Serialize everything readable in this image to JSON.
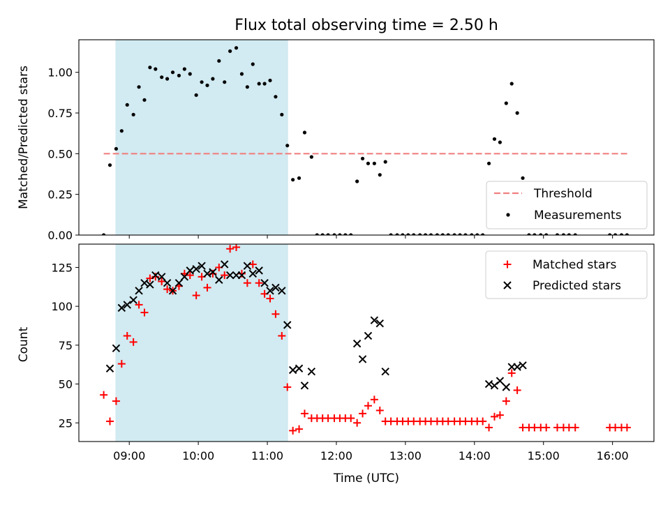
{
  "chart_data": {
    "title": "Flux total observing time = 2.50 h",
    "xlabel": "Time (UTC)",
    "x_ticks": [
      9,
      10,
      11,
      12,
      13,
      14,
      15,
      16
    ],
    "x_tick_labels": [
      "09:00",
      "10:00",
      "11:00",
      "12:00",
      "13:00",
      "14:00",
      "15:00",
      "16:00"
    ],
    "xlim": [
      8.27,
      16.6
    ],
    "highlight_span": [
      8.8,
      11.3
    ],
    "highlight_color": "#add8e6",
    "top_panel": {
      "type": "scatter",
      "ylabel": "Matched/Predicted stars",
      "ylim": [
        0,
        1.2
      ],
      "y_ticks": [
        0,
        0.25,
        0.5,
        0.75,
        1.0
      ],
      "y_tick_labels": [
        "0.00",
        "0.25",
        "0.50",
        "0.75",
        "1.00"
      ],
      "threshold": {
        "name": "Threshold",
        "value": 0.5,
        "x_range": [
          8.63,
          16.25
        ],
        "color": "#f08080"
      },
      "legend": {
        "placement": "lower right",
        "entries": [
          "Threshold",
          "Measurements"
        ]
      },
      "series": [
        {
          "name": "Measurements",
          "color": "#000000",
          "points": [
            [
              8.63,
              0.0
            ],
            [
              8.72,
              0.43
            ],
            [
              8.81,
              0.53
            ],
            [
              8.89,
              0.64
            ],
            [
              8.97,
              0.8
            ],
            [
              9.06,
              0.74
            ],
            [
              9.14,
              0.91
            ],
            [
              9.22,
              0.83
            ],
            [
              9.3,
              1.03
            ],
            [
              9.38,
              1.02
            ],
            [
              9.47,
              0.97
            ],
            [
              9.55,
              0.96
            ],
            [
              9.63,
              1.0
            ],
            [
              9.72,
              0.98
            ],
            [
              9.8,
              1.02
            ],
            [
              9.88,
              0.99
            ],
            [
              9.97,
              0.86
            ],
            [
              10.05,
              0.94
            ],
            [
              10.13,
              0.92
            ],
            [
              10.21,
              0.96
            ],
            [
              10.3,
              1.07
            ],
            [
              10.38,
              0.94
            ],
            [
              10.46,
              1.13
            ],
            [
              10.55,
              1.15
            ],
            [
              10.63,
              0.99
            ],
            [
              10.71,
              0.91
            ],
            [
              10.79,
              1.05
            ],
            [
              10.88,
              0.93
            ],
            [
              10.96,
              0.93
            ],
            [
              11.04,
              0.95
            ],
            [
              11.12,
              0.85
            ],
            [
              11.21,
              0.74
            ],
            [
              11.29,
              0.55
            ],
            [
              11.37,
              0.34
            ],
            [
              11.46,
              0.35
            ],
            [
              11.54,
              0.63
            ],
            [
              11.64,
              0.48
            ],
            [
              11.72,
              0.0
            ],
            [
              11.8,
              0.0
            ],
            [
              11.88,
              0.0
            ],
            [
              11.97,
              0.0
            ],
            [
              12.05,
              0.0
            ],
            [
              12.13,
              0.0
            ],
            [
              12.21,
              0.0
            ],
            [
              12.3,
              0.33
            ],
            [
              12.38,
              0.47
            ],
            [
              12.46,
              0.44
            ],
            [
              12.55,
              0.44
            ],
            [
              12.63,
              0.37
            ],
            [
              12.71,
              0.45
            ],
            [
              12.79,
              0.0
            ],
            [
              12.88,
              0.0
            ],
            [
              12.96,
              0.0
            ],
            [
              13.04,
              0.0
            ],
            [
              13.12,
              0.0
            ],
            [
              13.21,
              0.0
            ],
            [
              13.29,
              0.0
            ],
            [
              13.37,
              0.0
            ],
            [
              13.46,
              0.0
            ],
            [
              13.54,
              0.0
            ],
            [
              13.62,
              0.0
            ],
            [
              13.71,
              0.0
            ],
            [
              13.79,
              0.0
            ],
            [
              13.87,
              0.0
            ],
            [
              13.96,
              0.0
            ],
            [
              14.04,
              0.0
            ],
            [
              14.12,
              0.0
            ],
            [
              14.21,
              0.44
            ],
            [
              14.29,
              0.59
            ],
            [
              14.37,
              0.57
            ],
            [
              14.46,
              0.81
            ],
            [
              14.54,
              0.93
            ],
            [
              14.62,
              0.75
            ],
            [
              14.7,
              0.35
            ],
            [
              14.79,
              0.0
            ],
            [
              14.87,
              0.0
            ],
            [
              14.96,
              0.0
            ],
            [
              15.04,
              0.0
            ],
            [
              15.2,
              0.0
            ],
            [
              15.29,
              0.0
            ],
            [
              15.37,
              0.0
            ],
            [
              15.46,
              0.0
            ],
            [
              15.96,
              0.0
            ],
            [
              16.04,
              0.0
            ],
            [
              16.13,
              0.0
            ],
            [
              16.21,
              0.0
            ]
          ]
        }
      ]
    },
    "bottom_panel": {
      "type": "scatter",
      "ylabel": "Count",
      "ylim": [
        13,
        140
      ],
      "y_ticks": [
        25,
        50,
        75,
        100,
        125
      ],
      "y_tick_labels": [
        "25",
        "50",
        "75",
        "100",
        "125"
      ],
      "legend": {
        "placement": "upper right",
        "entries": [
          "Matched stars",
          "Predicted stars"
        ]
      },
      "series": [
        {
          "name": "Matched stars",
          "marker": "plus",
          "color": "#ff0000",
          "points": [
            [
              8.63,
              43
            ],
            [
              8.72,
              26
            ],
            [
              8.81,
              39
            ],
            [
              8.89,
              63
            ],
            [
              8.97,
              81
            ],
            [
              9.06,
              77
            ],
            [
              9.14,
              101
            ],
            [
              9.22,
              96
            ],
            [
              9.3,
              118
            ],
            [
              9.38,
              119
            ],
            [
              9.47,
              116
            ],
            [
              9.55,
              111
            ],
            [
              9.63,
              110
            ],
            [
              9.72,
              113
            ],
            [
              9.8,
              121
            ],
            [
              9.88,
              120
            ],
            [
              9.97,
              107
            ],
            [
              10.05,
              119
            ],
            [
              10.13,
              112
            ],
            [
              10.21,
              121
            ],
            [
              10.3,
              125
            ],
            [
              10.38,
              120
            ],
            [
              10.46,
              137
            ],
            [
              10.55,
              138
            ],
            [
              10.63,
              121
            ],
            [
              10.71,
              115
            ],
            [
              10.79,
              127
            ],
            [
              10.88,
              115
            ],
            [
              10.96,
              108
            ],
            [
              11.04,
              105
            ],
            [
              11.12,
              95
            ],
            [
              11.21,
              81
            ],
            [
              11.29,
              48
            ],
            [
              11.37,
              20
            ],
            [
              11.46,
              21
            ],
            [
              11.54,
              31
            ],
            [
              11.64,
              28
            ],
            [
              11.72,
              28
            ],
            [
              11.8,
              28
            ],
            [
              11.88,
              28
            ],
            [
              11.97,
              28
            ],
            [
              12.05,
              28
            ],
            [
              12.13,
              28
            ],
            [
              12.21,
              28
            ],
            [
              12.3,
              25
            ],
            [
              12.38,
              31
            ],
            [
              12.46,
              36
            ],
            [
              12.55,
              40
            ],
            [
              12.63,
              33
            ],
            [
              12.71,
              26
            ],
            [
              12.79,
              26
            ],
            [
              12.88,
              26
            ],
            [
              12.96,
              26
            ],
            [
              13.04,
              26
            ],
            [
              13.12,
              26
            ],
            [
              13.21,
              26
            ],
            [
              13.29,
              26
            ],
            [
              13.37,
              26
            ],
            [
              13.46,
              26
            ],
            [
              13.54,
              26
            ],
            [
              13.62,
              26
            ],
            [
              13.71,
              26
            ],
            [
              13.79,
              26
            ],
            [
              13.87,
              26
            ],
            [
              13.96,
              26
            ],
            [
              14.04,
              26
            ],
            [
              14.12,
              26
            ],
            [
              14.21,
              22
            ],
            [
              14.29,
              29
            ],
            [
              14.37,
              30
            ],
            [
              14.46,
              39
            ],
            [
              14.54,
              57
            ],
            [
              14.62,
              46
            ],
            [
              14.7,
              22
            ],
            [
              14.79,
              22
            ],
            [
              14.87,
              22
            ],
            [
              14.96,
              22
            ],
            [
              15.04,
              22
            ],
            [
              15.2,
              22
            ],
            [
              15.29,
              22
            ],
            [
              15.37,
              22
            ],
            [
              15.46,
              22
            ],
            [
              15.96,
              22
            ],
            [
              16.04,
              22
            ],
            [
              16.13,
              22
            ],
            [
              16.21,
              22
            ]
          ]
        },
        {
          "name": "Predicted stars",
          "marker": "x",
          "color": "#000000",
          "points": [
            [
              8.72,
              60
            ],
            [
              8.81,
              73
            ],
            [
              8.89,
              99
            ],
            [
              8.97,
              101
            ],
            [
              9.06,
              104
            ],
            [
              9.14,
              110
            ],
            [
              9.22,
              115
            ],
            [
              9.3,
              114
            ],
            [
              9.38,
              120
            ],
            [
              9.47,
              119
            ],
            [
              9.55,
              115
            ],
            [
              9.63,
              110
            ],
            [
              9.72,
              115
            ],
            [
              9.8,
              119
            ],
            [
              9.88,
              123
            ],
            [
              9.97,
              124
            ],
            [
              10.05,
              126
            ],
            [
              10.13,
              121
            ],
            [
              10.21,
              122
            ],
            [
              10.3,
              117
            ],
            [
              10.38,
              127
            ],
            [
              10.46,
              120
            ],
            [
              10.55,
              120
            ],
            [
              10.63,
              120
            ],
            [
              10.71,
              126
            ],
            [
              10.79,
              121
            ],
            [
              10.88,
              123
            ],
            [
              10.96,
              115
            ],
            [
              11.04,
              110
            ],
            [
              11.12,
              112
            ],
            [
              11.21,
              110
            ],
            [
              11.29,
              88
            ],
            [
              11.37,
              59
            ],
            [
              11.46,
              60
            ],
            [
              11.54,
              49
            ],
            [
              11.64,
              58
            ],
            [
              12.3,
              76
            ],
            [
              12.38,
              66
            ],
            [
              12.46,
              81
            ],
            [
              12.55,
              91
            ],
            [
              12.63,
              89
            ],
            [
              12.71,
              58
            ],
            [
              14.21,
              50
            ],
            [
              14.29,
              49
            ],
            [
              14.37,
              52
            ],
            [
              14.46,
              48
            ],
            [
              14.54,
              61
            ],
            [
              14.62,
              61
            ],
            [
              14.7,
              62
            ]
          ]
        }
      ]
    }
  }
}
